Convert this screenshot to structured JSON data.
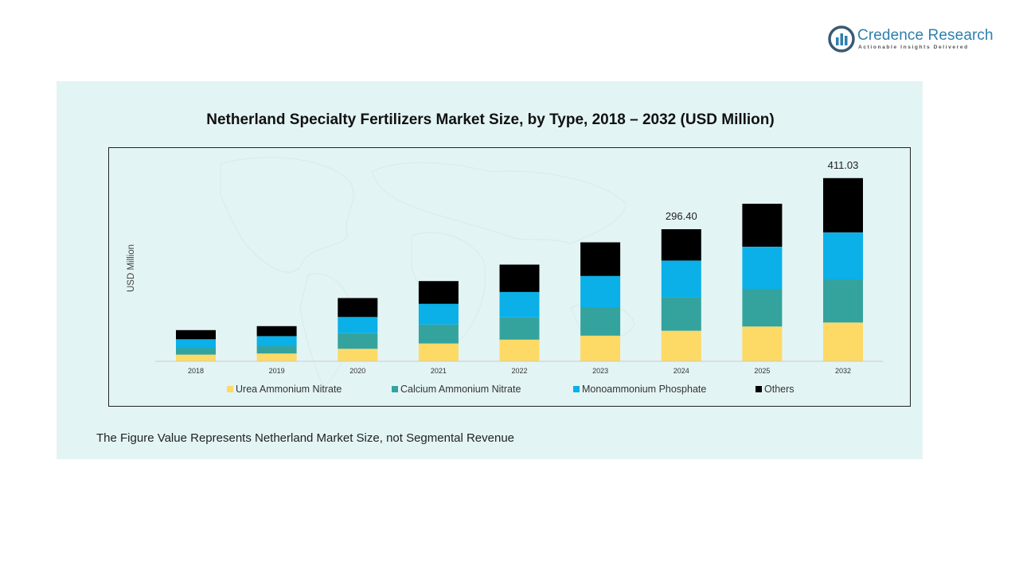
{
  "brand": {
    "name": "Credence Research",
    "tagline": "Actionable Insights Delivered"
  },
  "chart_data": {
    "type": "bar",
    "stacked": true,
    "title": "Netherland Specialty Fertilizers Market Size, by Type, 2018 – 2032 (USD Million)",
    "xlabel": "",
    "ylabel": "USD Million",
    "ylim": [
      0,
      450
    ],
    "grid": false,
    "legend_position": "bottom",
    "categories": [
      "2018",
      "2019",
      "2020",
      "2021",
      "2022",
      "2023",
      "2024",
      "2025",
      "2032"
    ],
    "series": [
      {
        "name": "Urea Ammonium Nitrate",
        "color": "#fdd966",
        "values": [
          15.0,
          17.5,
          28.0,
          40.0,
          48.5,
          57.5,
          68.5,
          78.0,
          87.0
        ]
      },
      {
        "name": "Calcium Ammonium Nitrate",
        "color": "#35a39d",
        "values": [
          14.5,
          16.5,
          35.0,
          42.5,
          50.0,
          64.0,
          75.0,
          84.5,
          96.0
        ]
      },
      {
        "name": "Monoammonium Phosphate",
        "color": "#0ab0e7",
        "values": [
          20.0,
          22.5,
          36.5,
          46.5,
          57.0,
          70.0,
          82.5,
          94.5,
          106.0
        ]
      },
      {
        "name": "Others",
        "color": "#000000",
        "values": [
          20.5,
          22.5,
          42.5,
          51.0,
          61.5,
          75.5,
          70.4,
          96.5,
          122.03
        ]
      }
    ],
    "totals_labels": [
      {
        "category": "2024",
        "label": "296.40"
      },
      {
        "category": "2032",
        "label": "411.03"
      }
    ]
  },
  "footnote": "The Figure Value Represents Netherland Market Size, not Segmental Revenue"
}
